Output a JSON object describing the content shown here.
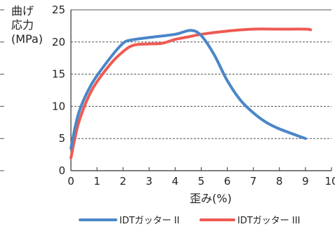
{
  "chart_data": {
    "type": "line",
    "ylabel_lines": [
      "曲げ",
      "応力",
      "(MPa)"
    ],
    "xlabel": "歪み(%)",
    "xlim": [
      0,
      10
    ],
    "ylim": [
      0,
      25
    ],
    "x_ticks": [
      "0",
      "1",
      "2",
      "3",
      "4",
      "5",
      "6",
      "7",
      "8",
      "9",
      "10"
    ],
    "y_ticks": [
      "0",
      "5",
      "10",
      "15",
      "20",
      "25"
    ],
    "grid": "horizontal dashed",
    "legend_position": "bottom",
    "series": [
      {
        "name": "IDTガッター II",
        "color": "#4a86c8",
        "x": [
          0,
          0.3,
          0.8,
          1.5,
          2.0,
          2.3,
          3.0,
          4.0,
          4.6,
          5.0,
          5.5,
          6.0,
          6.5,
          7.0,
          7.5,
          8.0,
          9.0
        ],
        "y": [
          3.5,
          9.0,
          13.5,
          17.5,
          19.8,
          20.3,
          20.7,
          21.2,
          21.8,
          21.0,
          18.0,
          14.0,
          11.0,
          9.0,
          7.5,
          6.5,
          5.0
        ]
      },
      {
        "name": "IDTガッター III",
        "color": "#ee5a52",
        "x": [
          0,
          0.3,
          0.8,
          1.5,
          2.0,
          2.4,
          3.0,
          3.5,
          4.0,
          4.5,
          5.0,
          6.0,
          7.0,
          8.0,
          9.0,
          9.2
        ],
        "y": [
          2.0,
          7.5,
          12.5,
          16.5,
          18.5,
          19.5,
          19.7,
          19.8,
          20.4,
          20.8,
          21.2,
          21.7,
          22.0,
          22.0,
          22.0,
          21.9
        ]
      }
    ]
  }
}
